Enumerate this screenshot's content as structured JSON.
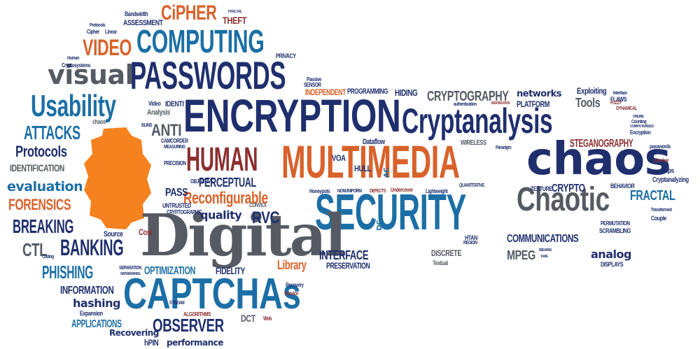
{
  "words": {
    "cipher": "CiPHER",
    "bandwidth": "Bandwidth",
    "assessment": "ASSESSMENT",
    "computing": "COMPUTING",
    "video": "VIDEO",
    "theft": "THEFT",
    "fractal_top": "FRACTAL",
    "visual": "visual",
    "passwords": "PASSWORDS",
    "usability": "Usability",
    "encryption": "ENCRYPTION",
    "cryptography": "CRYPTOGRAPHY",
    "networks": "networks",
    "cryptanalysis": "Cryptanalysis",
    "attacks": "ATTACKS",
    "protocols": "Protocols",
    "identification": "IDENTIFICATION",
    "evaluation": "evaluation",
    "forensics": "FORENSICS",
    "breaking": "BREAKING",
    "ctl": "CTL",
    "banking": "BANKING",
    "phishing": "PHISHING",
    "information": "INFORMATION",
    "hashing": "hashing",
    "applications": "APPLICATIONS",
    "anti": "ANTI",
    "human": "HUMAN",
    "multimedia": "MULTIMEDIA",
    "chaos": "chaos",
    "security": "SECURITY",
    "chaotic": "Chaotic",
    "digital": "Digital",
    "captchas": "CAPTCHAs",
    "observer": "OBSERVER",
    "reconfigurable": "Reconfigurable",
    "perceptual": "PERCEPTUAL",
    "quality": "quality",
    "rvc": "RVC",
    "pass": "PASS",
    "optimization": "OPTIMIZATION",
    "fidelity": "FIDELITY",
    "library": "Library",
    "interface": "INTERFACE",
    "preservation": "PRESERVATION",
    "communications": "COMMUNICATIONS",
    "mpeg": "MPEG",
    "analog": "analog",
    "crypto": "CRYPTO",
    "fractal": "FRACTAL",
    "steganography": "STEGANOGRAPHY",
    "tools": "Tools",
    "exploiting": "Exploiting",
    "platform": "PLATFORM",
    "independent": "INDEPENDENT",
    "programming": "PROGRAMMING",
    "hiding": "HIDING",
    "dataflow": "Dataflow",
    "voa": "VOA",
    "wireless": "WIRELESS",
    "hull": "HULL",
    "dct": "DCT",
    "recovering": "Recovering",
    "performance": "performance",
    "hpin": "hPIN",
    "cost": "Cost",
    "source": "Source",
    "discrete": "DISCRETE",
    "textual": "Textual",
    "displays": "DISPLAYS",
    "texture": "TEXTURE",
    "behavior": "BEHAVIOR",
    "maps": "Maps",
    "cryptanalyzing": "Cryptanalyzing",
    "permutation": "PERMUTATION",
    "scrambling": "SCRAMBLING",
    "couple": "Couple",
    "passwords_small": "passwords",
    "encryption_small": "Encryption",
    "flaws": "FLAWS",
    "interface_small": "Interface",
    "convex": "CONVEX",
    "untrusted": "UNTRUSTED",
    "cryptographic": "CRYPTOGRAPHIC",
    "precision": "PRECISION",
    "objective": "OBJECTIVE",
    "camcorder": "CAMCORDER",
    "analysis": "Analysis",
    "video_small": "Video",
    "chaos_small": "chaos",
    "linear": "Linear",
    "cipher_small": "Cipher",
    "protocols_small": "Protocols",
    "cryptosystems": "Cryptosystems",
    "human_small": "Human",
    "privacy": "PRIVACY",
    "expansion": "Expansion",
    "algorithms": "ALGORITHMS",
    "stream": "STREAM",
    "recovery": "Recovery",
    "service": "Service",
    "web": "Web",
    "quantitative": "QUANTITATIVE",
    "lightweight": "Lightweight",
    "undercover": "Undercover",
    "honeypots": "Honeypots",
    "nonuniform": "NONUNIFORM",
    "defects": "DEFECTS",
    "identi": "IDENTI",
    "dc": "DC",
    "ac": "AC",
    "passive": "Passive",
    "sensor": "SENSOR",
    "fuzzy": "FUZZY",
    "dynamical": "DYNAMICAL",
    "online": "ONLINE",
    "counting": "Counting",
    "computerized": "COMPUTERIZED",
    "checker": "checker",
    "transformed": "Transformed",
    "authentication": "authentication",
    "identification_small": "IDENTIFICATION",
    "paradigm": "Paradigm",
    "blind": "BLIND",
    "measuring": "MEASURING",
    "coding": "Coding",
    "separation": "SEPARATION",
    "watermarking": "WATERMARKING",
    "breaking_small": "BREAKING",
    "tools_small": "Tools",
    "region": "REGION",
    "htan": "HTAN"
  },
  "colors": {
    "navy": "#1f2f6e",
    "teal": "#1c6fa6",
    "orange": "#d9622b",
    "maroon": "#8c2f2f",
    "gray": "#555a63",
    "dark": "#333333",
    "blue": "#2a5c99",
    "blob": "#f5821f"
  }
}
